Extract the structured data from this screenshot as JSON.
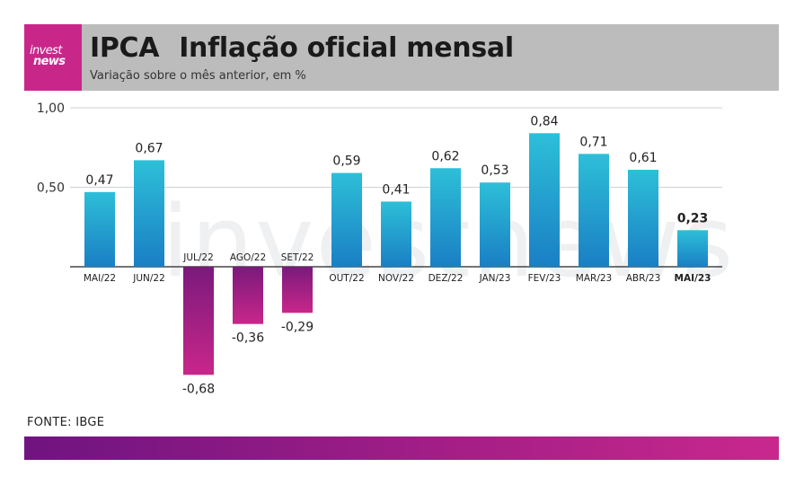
{
  "header": {
    "logo_line1": "invest",
    "logo_line2": "news",
    "title_main": "IPCA",
    "title_rest": "Inflação oficial mensal",
    "subtitle": "Variação sobre o mês anterior, em %"
  },
  "watermark": "investnews",
  "source": "FONTE: IBGE",
  "colors": {
    "positive_top": "#2dbfd8",
    "positive_bottom": "#1a7fc4",
    "negative_top": "#7a1a7c",
    "negative_bottom": "#c9268a",
    "header_bg": "#bcbcbc",
    "logo_bg": "#c9268a"
  },
  "chart_data": {
    "type": "bar",
    "title": "IPCA Inflação oficial mensal",
    "subtitle": "Variação sobre o mês anterior, em %",
    "categories": [
      "MAI/22",
      "JUN/22",
      "JUL/22",
      "AGO/22",
      "SET/22",
      "OUT/22",
      "NOV/22",
      "DEZ/22",
      "JAN/23",
      "FEV/23",
      "MAR/23",
      "ABR/23",
      "MAI/23"
    ],
    "values": [
      0.47,
      0.67,
      -0.68,
      -0.36,
      -0.29,
      0.59,
      0.41,
      0.62,
      0.53,
      0.84,
      0.71,
      0.61,
      0.23
    ],
    "value_labels": [
      "0,47",
      "0,67",
      "-0,68",
      "-0,36",
      "-0,29",
      "0,59",
      "0,41",
      "0,62",
      "0,53",
      "0,84",
      "0,71",
      "0,61",
      "0,23"
    ],
    "highlight_index": 12,
    "yticks": [
      0.5,
      1.0
    ],
    "ytick_labels": [
      "0,50",
      "1,00"
    ],
    "ylim": [
      -0.8,
      1.0
    ],
    "grid": true,
    "xlabel": "",
    "ylabel": ""
  }
}
